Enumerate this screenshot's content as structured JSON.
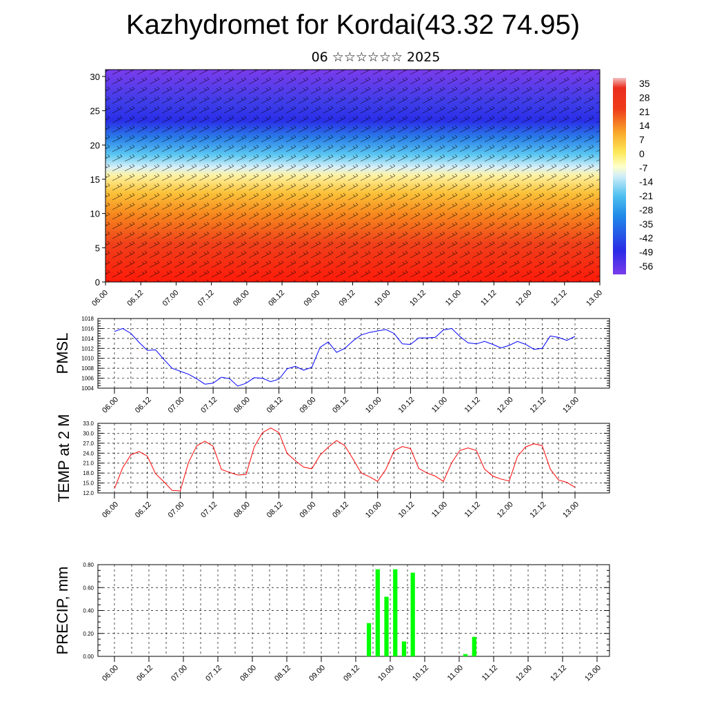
{
  "title": "Kazhydromet for Kordai(43.32 74.95)",
  "subtitle": "06 ☆☆☆☆☆☆ 2025",
  "chart_data": [
    {
      "type": "heatmap",
      "description_text": "",
      "x_tick_labels": [
        "06.00",
        "06.12",
        "07.00",
        "07.12",
        "08.00",
        "08.12",
        "09.00",
        "09.12",
        "10.00",
        "10.12",
        "11.00",
        "11.12",
        "12.00",
        "12.12",
        "13.00"
      ],
      "y_tick_labels": [
        "0",
        "5",
        "10",
        "15",
        "20",
        "25",
        "30"
      ],
      "ylim": [
        0,
        31
      ],
      "colorbar_labels": [
        "35",
        "28",
        "21",
        "14",
        "7",
        "0",
        "-7",
        "-14",
        "-21",
        "-28",
        "-35",
        "-42",
        "-49",
        "-56"
      ],
      "colorbar_colors": [
        "#f0b8b8",
        "#ea2d1e",
        "#f26a18",
        "#f9a92a",
        "#fde95a",
        "#ffffc8",
        "#b9e3f5",
        "#4fc0f0",
        "#1f8be8",
        "#2b3ee6",
        "#5a2fe6"
      ],
      "wind_barbs": true
    },
    {
      "type": "line",
      "ylabel": "PMSL",
      "x_tick_labels": [
        "06.00",
        "06.12",
        "07.00",
        "07.12",
        "08.00",
        "08.12",
        "09.00",
        "09.12",
        "10.00",
        "10.12",
        "11.00",
        "11.12",
        "12.00",
        "12.12",
        "13.00"
      ],
      "y_tick_labels": [
        "1004",
        "1006",
        "1008",
        "1010",
        "1012",
        "1014",
        "1016",
        "1018"
      ],
      "ylim": [
        1004,
        1018
      ],
      "color": "#0000ff",
      "values": [
        1015.4,
        1016.0,
        1015.0,
        1013.2,
        1011.6,
        1011.7,
        1009.8,
        1008.0,
        1007.4,
        1006.8,
        1005.9,
        1004.8,
        1005.0,
        1006.2,
        1005.9,
        1004.4,
        1005.0,
        1006.1,
        1006.0,
        1005.3,
        1005.8,
        1007.9,
        1008.4,
        1007.6,
        1008.2,
        1012.2,
        1013.3,
        1011.2,
        1012.0,
        1013.5,
        1014.7,
        1015.2,
        1015.5,
        1015.8,
        1015.0,
        1012.9,
        1012.8,
        1014.1,
        1014.1,
        1014.2,
        1015.7,
        1016.0,
        1014.4,
        1013.1,
        1012.9,
        1013.4,
        1012.8,
        1012.1,
        1012.6,
        1013.4,
        1012.8,
        1011.8,
        1012.0,
        1014.5,
        1014.2,
        1013.6,
        1014.4
      ]
    },
    {
      "type": "line",
      "ylabel": "TEMP at 2 M",
      "x_tick_labels": [
        "06.00",
        "06.12",
        "07.00",
        "07.12",
        "08.00",
        "08.12",
        "09.00",
        "09.12",
        "10.00",
        "10.12",
        "11.00",
        "11.12",
        "12.00",
        "12.12",
        "13.00"
      ],
      "y_tick_labels": [
        "12.0",
        "15.0",
        "18.0",
        "21.0",
        "24.0",
        "27.0",
        "30.0",
        "33.0"
      ],
      "ylim": [
        12,
        33
      ],
      "color": "#ff0000",
      "values": [
        13.3,
        19.6,
        23.5,
        24.5,
        23.1,
        17.8,
        15.4,
        12.8,
        12.6,
        21.2,
        26.2,
        27.6,
        26.1,
        19.1,
        18.2,
        17.4,
        17.6,
        25.9,
        30.2,
        31.6,
        30.2,
        23.9,
        21.7,
        19.8,
        19.3,
        23.4,
        25.8,
        27.8,
        26.3,
        22.3,
        18.0,
        16.9,
        15.5,
        19.1,
        24.7,
        26.0,
        25.4,
        19.4,
        18.0,
        17.1,
        15.5,
        21.1,
        24.8,
        25.6,
        24.8,
        19.2,
        17.1,
        16.2,
        15.6,
        23.0,
        25.9,
        26.8,
        26.3,
        19.2,
        15.9,
        15.2,
        13.7
      ]
    },
    {
      "type": "bar",
      "ylabel": "PRECIP, mm",
      "x_tick_labels": [
        "06.00",
        "06.12",
        "07.00",
        "07.12",
        "08.00",
        "08.12",
        "09.00",
        "09.12",
        "10.00",
        "10.12",
        "11.00",
        "11.12",
        "12.00",
        "12.12",
        "13.00"
      ],
      "y_tick_labels": [
        "0.00",
        "0.20",
        "0.40",
        "0.60",
        "0.80"
      ],
      "ylim": [
        0,
        0.8
      ],
      "color": "#00ff00",
      "values": [
        0,
        0,
        0,
        0,
        0,
        0,
        0,
        0,
        0,
        0,
        0,
        0,
        0,
        0,
        0,
        0,
        0,
        0,
        0,
        0,
        0,
        0,
        0,
        0,
        0,
        0,
        0,
        0,
        0,
        0.29,
        0.76,
        0.52,
        0.76,
        0.13,
        0.73,
        0,
        0,
        0,
        0,
        0,
        0.02,
        0.17,
        0,
        0,
        0,
        0,
        0,
        0,
        0,
        0,
        0,
        0,
        0,
        0,
        0,
        0
      ]
    }
  ]
}
